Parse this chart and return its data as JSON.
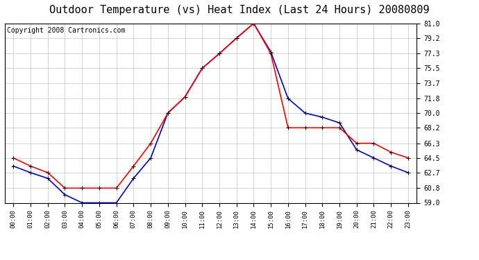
{
  "title": "Outdoor Temperature (vs) Heat Index (Last 24 Hours) 20080809",
  "copyright": "Copyright 2008 Cartronics.com",
  "hours": [
    "00:00",
    "01:00",
    "02:00",
    "03:00",
    "04:00",
    "05:00",
    "06:00",
    "07:00",
    "08:00",
    "09:00",
    "10:00",
    "11:00",
    "12:00",
    "13:00",
    "14:00",
    "15:00",
    "16:00",
    "17:00",
    "18:00",
    "19:00",
    "20:00",
    "21:00",
    "22:00",
    "23:00"
  ],
  "temp": [
    64.5,
    63.5,
    62.7,
    60.8,
    60.8,
    60.8,
    60.8,
    63.5,
    66.3,
    70.0,
    72.0,
    75.5,
    77.3,
    79.2,
    81.0,
    77.3,
    68.2,
    68.2,
    68.2,
    68.2,
    66.3,
    66.3,
    65.2,
    64.5
  ],
  "heat_index": [
    63.5,
    62.7,
    62.0,
    60.0,
    59.0,
    59.0,
    59.0,
    62.0,
    64.5,
    70.0,
    72.0,
    75.5,
    77.3,
    79.2,
    81.0,
    77.5,
    71.8,
    70.0,
    69.5,
    68.8,
    65.5,
    64.5,
    63.5,
    62.7
  ],
  "temp_color": "#ff0000",
  "heat_index_color": "#0000cc",
  "ylim": [
    59.0,
    81.0
  ],
  "yticks": [
    59.0,
    60.8,
    62.7,
    64.5,
    66.3,
    68.2,
    70.0,
    71.8,
    73.7,
    75.5,
    77.3,
    79.2,
    81.0
  ],
  "background_color": "#ffffff",
  "grid_color": "#aaaaaa",
  "title_fontsize": 11,
  "copyright_fontsize": 7,
  "marker": "+",
  "marker_size": 5,
  "linewidth": 1.2
}
